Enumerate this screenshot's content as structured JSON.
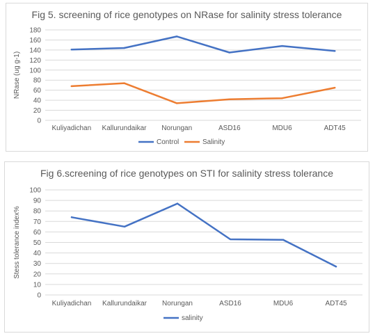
{
  "chart_data": [
    {
      "type": "line",
      "title": "Fig 5. screening of rice genotypes on NRase for salinity stress tolerance",
      "xlabel": "",
      "ylabel": "NRase (ug g-1)",
      "ylim": [
        0,
        180
      ],
      "yticks": [
        0,
        20,
        40,
        60,
        80,
        100,
        120,
        140,
        160,
        180
      ],
      "grid": true,
      "legend": "bottom",
      "categories": [
        "Kuliyadichan",
        "Kallurundaikar",
        "Norungan",
        "ASD16",
        "MDU6",
        "ADT45"
      ],
      "series": [
        {
          "name": "Control",
          "color": "#4472c4",
          "values": [
            141,
            144,
            167,
            135,
            148,
            138
          ]
        },
        {
          "name": "Salinity",
          "color": "#ed7d31",
          "values": [
            68,
            74,
            34,
            42,
            44,
            65
          ]
        }
      ]
    },
    {
      "type": "line",
      "title": "Fig 6.screening of rice genotypes on STI for salinity stress tolerance",
      "xlabel": "",
      "ylabel": "Stess tolerance index%",
      "ylim": [
        0,
        100
      ],
      "yticks": [
        0,
        10,
        20,
        30,
        40,
        50,
        60,
        70,
        80,
        90,
        100
      ],
      "grid": true,
      "legend": "bottom",
      "categories": [
        "Kuliyadichan",
        "Kallurundaikar",
        "Norungan",
        "ASD16",
        "MDU6",
        "ADT45"
      ],
      "series": [
        {
          "name": "salinity",
          "color": "#4472c4",
          "values": [
            74,
            65,
            87,
            53,
            52.5,
            27
          ]
        }
      ]
    }
  ]
}
